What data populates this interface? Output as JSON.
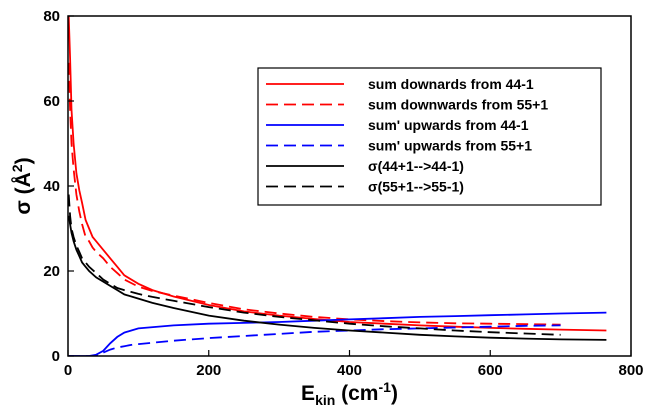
{
  "chart_data": {
    "type": "line",
    "title": "",
    "xlabel": {
      "main": "E",
      "sub": "kin",
      "rest": " (cm",
      "sup": "-1",
      "close": ")"
    },
    "ylabel": {
      "main": "σ (Å",
      "sup": "2",
      "close": ")"
    },
    "xlim": [
      0,
      800
    ],
    "ylim": [
      0,
      80
    ],
    "xticks": [
      "0",
      "200",
      "400",
      "600",
      "800"
    ],
    "yticks": [
      "0",
      "20",
      "40",
      "60",
      "80"
    ],
    "grid": false,
    "legend_position": "top-right",
    "series": [
      {
        "name": "sum downards from 44-1",
        "color": "#ff0000",
        "dash": "solid",
        "x": [
          1,
          3,
          5,
          8,
          12,
          16,
          20,
          25,
          30,
          35,
          40,
          50,
          60,
          70,
          80,
          100,
          120,
          150,
          200,
          250,
          300,
          350,
          400,
          450,
          500,
          550,
          600,
          650,
          700,
          765
        ],
        "y": [
          80,
          70,
          58,
          50,
          43,
          39,
          36,
          32,
          30,
          28,
          27,
          25,
          23,
          21,
          19,
          17,
          15.5,
          14,
          12,
          10.5,
          9.5,
          8.7,
          8.0,
          7.6,
          7.2,
          6.9,
          6.6,
          6.4,
          6.2,
          6.0
        ]
      },
      {
        "name": "sum downwards from 55+1",
        "color": "#ff0000",
        "dash": "dashed",
        "x": [
          1,
          3,
          5,
          8,
          12,
          16,
          20,
          25,
          30,
          35,
          40,
          50,
          60,
          70,
          80,
          100,
          120,
          150,
          200,
          250,
          300,
          350,
          400,
          450,
          500,
          550,
          600,
          650,
          700
        ],
        "y": [
          69,
          58,
          50,
          44,
          38,
          34,
          31,
          28,
          27,
          25.5,
          24.5,
          23,
          21,
          19.5,
          18,
          16.3,
          15.3,
          14.2,
          12.5,
          11,
          10,
          9.2,
          8.6,
          8.2,
          7.9,
          7.7,
          7.6,
          7.5,
          7.4
        ]
      },
      {
        "name": "sum' upwards from 44-1",
        "color": "#0000ff",
        "dash": "solid",
        "x": [
          0,
          30,
          40,
          50,
          60,
          70,
          80,
          90,
          100,
          150,
          200,
          250,
          300,
          350,
          400,
          450,
          500,
          550,
          600,
          650,
          700,
          765
        ],
        "y": [
          0,
          0,
          0.3,
          1.2,
          3,
          4.5,
          5.5,
          6,
          6.5,
          7.2,
          7.6,
          7.8,
          8.0,
          8.3,
          8.6,
          8.9,
          9.2,
          9.4,
          9.6,
          9.8,
          10.0,
          10.2
        ]
      },
      {
        "name": "sum' upwards from 55+1",
        "color": "#0000ff",
        "dash": "dashed",
        "x": [
          0,
          38,
          50,
          60,
          70,
          80,
          90,
          100,
          150,
          200,
          250,
          300,
          350,
          400,
          450,
          500,
          550,
          600,
          650,
          700
        ],
        "y": [
          0,
          0,
          0.8,
          1.5,
          2,
          2.3,
          2.6,
          2.8,
          3.6,
          4.2,
          4.7,
          5.2,
          5.7,
          6.0,
          6.3,
          6.5,
          6.7,
          6.9,
          7.1,
          7.2
        ]
      },
      {
        "name": "σ(44+1-->44-1)",
        "color": "#000000",
        "dash": "solid",
        "x": [
          1,
          3,
          5,
          8,
          12,
          16,
          20,
          25,
          30,
          40,
          50,
          60,
          70,
          80,
          100,
          120,
          150,
          200,
          250,
          300,
          350,
          400,
          450,
          500,
          550,
          600,
          650,
          700,
          765
        ],
        "y": [
          33,
          31,
          29,
          27,
          25,
          23.5,
          22,
          21,
          20,
          18.5,
          17.5,
          16.5,
          15.5,
          14.5,
          13.5,
          12.5,
          11.3,
          9.5,
          8.3,
          7.4,
          6.6,
          6.0,
          5.5,
          5.0,
          4.6,
          4.3,
          4.1,
          3.9,
          3.8
        ]
      },
      {
        "name": "σ(55+1-->55-1)",
        "color": "#000000",
        "dash": "dashed",
        "x": [
          1,
          3,
          5,
          8,
          12,
          16,
          20,
          25,
          30,
          40,
          50,
          60,
          70,
          80,
          100,
          120,
          150,
          200,
          250,
          300,
          350,
          400,
          450,
          500,
          550,
          600,
          650,
          700
        ],
        "y": [
          38,
          33,
          30,
          28,
          26,
          24.5,
          23,
          22,
          21,
          19.5,
          18,
          17,
          16,
          15.5,
          14.6,
          13.9,
          13,
          11.5,
          10.2,
          9.2,
          8.4,
          7.6,
          7,
          6.5,
          6.0,
          5.6,
          5.3,
          5.0
        ]
      }
    ]
  }
}
